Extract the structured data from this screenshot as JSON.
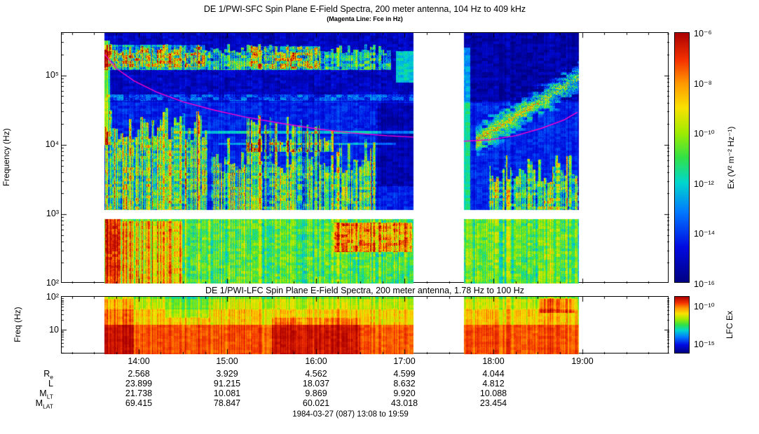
{
  "chart_data": [
    {
      "type": "heatmap",
      "title": "DE 1/PWI-SFC  Spin Plane E-Field Spectra, 200 meter antenna, 104 Hz to 409 kHz",
      "subtitle": "(Magenta Line: Fce in Hz)",
      "ylabel": "Frequency (Hz)",
      "y_scale": "log",
      "y_range_hz": [
        100,
        409000
      ],
      "y_tick_labels": [
        "10⁵",
        "10⁴",
        "10³",
        "10²"
      ],
      "y_tick_hz": [
        100000,
        10000,
        1000,
        100
      ],
      "x_time_range": [
        "13:08",
        "19:59"
      ],
      "x_hours_range": [
        13.1333,
        19.9833
      ],
      "x_ticks": [
        "14:00",
        "15:00",
        "16:00",
        "17:00",
        "18:00",
        "19:00"
      ],
      "x_tick_hours": [
        14,
        15,
        16,
        17,
        18,
        19
      ],
      "data_extent_hours": [
        13.617,
        18.967
      ],
      "data_gaps_hours": [
        [
          17.1,
          17.667
        ]
      ],
      "white_band_logf": [
        2.93,
        3.06
      ],
      "colorbar": {
        "label": "Ex (V² m⁻² Hz⁻¹)",
        "tick_labels": [
          "10⁻⁶",
          "10⁻⁸",
          "10⁻¹⁰",
          "10⁻¹²",
          "10⁻¹⁴",
          "10⁻¹⁶"
        ],
        "range_exponents": [
          -16,
          -6
        ]
      },
      "colormap": [
        [
          0,
          "#000082"
        ],
        [
          0.14,
          "#000ae1"
        ],
        [
          0.28,
          "#0078ff"
        ],
        [
          0.4,
          "#00d7cd"
        ],
        [
          0.5,
          "#32e146"
        ],
        [
          0.6,
          "#a0eb00"
        ],
        [
          0.7,
          "#fae100"
        ],
        [
          0.8,
          "#ff9600"
        ],
        [
          0.89,
          "#f53200"
        ],
        [
          1,
          "#aa0000"
        ]
      ],
      "fce_line": {
        "name": "Fce",
        "color": "#ff00cc",
        "segments": [
          [
            [
              13.62,
              5.3
            ],
            [
              13.75,
              5.1
            ],
            [
              13.95,
              4.92
            ],
            [
              14.2,
              4.76
            ],
            [
              14.5,
              4.62
            ],
            [
              14.85,
              4.5
            ],
            [
              15.2,
              4.4
            ],
            [
              15.6,
              4.31
            ],
            [
              16.0,
              4.23
            ],
            [
              16.4,
              4.17
            ],
            [
              16.8,
              4.13
            ],
            [
              17.1,
              4.11
            ]
          ],
          [
            [
              17.667,
              4.05
            ],
            [
              17.95,
              4.07
            ],
            [
              18.25,
              4.13
            ],
            [
              18.55,
              4.24
            ],
            [
              18.8,
              4.36
            ],
            [
              18.95,
              4.47
            ]
          ]
        ]
      },
      "regions": [
        {
          "name": "upper-background",
          "h": [
            13.0,
            19.0
          ],
          "f": [
            4.62,
            5.62
          ],
          "v": 0.09,
          "n": 0.12,
          "st": 0.05
        },
        {
          "name": "mid-background",
          "h": [
            13.0,
            19.0
          ],
          "f": [
            3.06,
            4.62
          ],
          "v": 0.17,
          "n": 0.1,
          "st": 0.06
        },
        {
          "name": "bottom-band",
          "h": [
            13.0,
            19.0
          ],
          "f": [
            2.0,
            2.93
          ],
          "v": 0.52,
          "n": 0.18,
          "st": 0.22
        },
        {
          "name": "continuum-band",
          "h": [
            13.6,
            16.85
          ],
          "f": [
            5.08,
            5.46
          ],
          "v": 0.3,
          "n": 0.3,
          "st": 0.25,
          "rag": 0.15
        },
        {
          "name": "akr-left-bright",
          "h": [
            13.6,
            14.75
          ],
          "f": [
            5.12,
            5.44
          ],
          "v": 0.22,
          "n": 0.2,
          "st": 0.2
        },
        {
          "name": "akr-mid-blob",
          "h": [
            15.25,
            16.05
          ],
          "f": [
            5.1,
            5.42
          ],
          "v": 0.2,
          "n": 0.2,
          "st": 0.15
        },
        {
          "name": "auroral-hiss-funnel",
          "h": [
            13.62,
            14.78
          ],
          "f": [
            2.95,
            4.55
          ],
          "v": 0.34,
          "n": 0.28,
          "st": 0.45,
          "rag": 0.5
        },
        {
          "name": "hiss-mid-mass",
          "h": [
            14.82,
            16.68
          ],
          "f": [
            3.06,
            4.12
          ],
          "v": 0.3,
          "n": 0.28,
          "st": 0.45,
          "rag": 0.55
        },
        {
          "name": "hiss-spikes",
          "h": [
            15.2,
            16.2
          ],
          "f": [
            3.9,
            4.45
          ],
          "v": 0.26,
          "n": 0.2,
          "st": 0.6,
          "rag": 0.5
        },
        {
          "name": "quiet-1700",
          "h": [
            16.7,
            17.1
          ],
          "f": [
            3.4,
            4.6
          ],
          "v": -0.1
        },
        {
          "name": "right-lower-green",
          "h": [
            17.95,
            18.97
          ],
          "f": [
            2.95,
            3.85
          ],
          "v": 0.28,
          "n": 0.28,
          "st": 0.4,
          "rag": 0.4
        },
        {
          "name": "bottom-orange-blob",
          "h": [
            16.2,
            17.08
          ],
          "f": [
            2.45,
            2.88
          ],
          "v": 0.28,
          "n": 0.12,
          "st": 0.1
        },
        {
          "name": "left-red-burst",
          "h": [
            13.62,
            13.8
          ],
          "f": [
            2.0,
            2.93
          ],
          "v": 0.4
        },
        {
          "name": "bottom-left-hot",
          "h": [
            13.8,
            14.5
          ],
          "f": [
            2.0,
            2.9
          ],
          "v": 0.18,
          "st": 0.2
        },
        {
          "name": "start-streak",
          "h": [
            13.617,
            13.68
          ],
          "f": [
            4.0,
            5.5
          ],
          "v": 0.4,
          "st": 0.2
        },
        {
          "name": "gap-edge-right",
          "h": [
            17.667,
            17.74
          ],
          "f": [
            3.0,
            5.4
          ],
          "v": 0.26
        },
        {
          "name": "gap-edge-left-top",
          "h": [
            16.9,
            17.1
          ],
          "f": [
            4.9,
            5.35
          ],
          "v": 0.3
        },
        {
          "name": "interference-line-1",
          "h": [
            14.4,
            17.1
          ],
          "f": [
            4.16,
            4.2
          ],
          "v": 0.22
        },
        {
          "name": "interference-line-2",
          "h": [
            14.9,
            16.9
          ],
          "f": [
            4.0,
            4.03
          ],
          "v": 0.16
        },
        {
          "name": "band-edge-stripe",
          "h": [
            13.62,
            17.1
          ],
          "f": [
            4.63,
            4.72
          ],
          "v": 0.12,
          "n": 0.15
        },
        {
          "name": "right-upper-quiet",
          "h": [
            17.667,
            18.97
          ],
          "f": [
            4.6,
            5.62
          ],
          "v": -0.04
        },
        {
          "name": "chorus-rising-band",
          "h": [
            17.8,
            18.97
          ],
          "fline": [
            4.05,
            4.98
          ],
          "w": 0.22,
          "v": 0.5
        }
      ]
    },
    {
      "type": "heatmap",
      "title": "DE 1/PWI-LFC  Spin Plane E-Field Spectra, 200 meter antenna, 1.78 Hz to 100 Hz",
      "ylabel": "Freq (Hz)",
      "y_scale": "log",
      "y_range_hz": [
        1.78,
        100
      ],
      "y_tick_labels": [
        "10²",
        "10"
      ],
      "y_tick_hz": [
        100,
        10
      ],
      "x_hours_range": [
        13.1333,
        19.9833
      ],
      "data_extent_hours": [
        13.617,
        18.967
      ],
      "data_gaps_hours": [
        [
          17.1,
          17.667
        ]
      ],
      "colorbar": {
        "label": "LFC Ex",
        "tick_labels": [
          "10⁻¹⁰",
          "10⁻¹⁵"
        ]
      },
      "colormap": [
        [
          0,
          "#000082"
        ],
        [
          0.14,
          "#000ae1"
        ],
        [
          0.28,
          "#0078ff"
        ],
        [
          0.4,
          "#00d7cd"
        ],
        [
          0.5,
          "#32e146"
        ],
        [
          0.6,
          "#a0eb00"
        ],
        [
          0.7,
          "#fae100"
        ],
        [
          0.8,
          "#ff9600"
        ],
        [
          0.89,
          "#f53200"
        ],
        [
          1,
          "#aa0000"
        ]
      ],
      "regions": [
        {
          "name": "base-red",
          "h": [
            13.0,
            19.0
          ],
          "f": [
            0.25,
            1.15
          ],
          "v": 0.86,
          "n": 0.06,
          "st": 0.1
        },
        {
          "name": "mid-orange",
          "h": [
            13.0,
            19.0
          ],
          "f": [
            1.15,
            1.62
          ],
          "v": 0.72,
          "n": 0.08,
          "st": 0.18
        },
        {
          "name": "top-yellow",
          "h": [
            13.0,
            19.0
          ],
          "f": [
            1.62,
            2.0
          ],
          "v": 0.64,
          "n": 0.08,
          "st": 0.18
        },
        {
          "name": "top-green-edge",
          "h": [
            13.0,
            19.0
          ],
          "f": [
            1.93,
            2.0
          ],
          "v": -0.1
        },
        {
          "name": "left-intense",
          "h": [
            13.6,
            13.95
          ],
          "f": [
            0.25,
            2.0
          ],
          "v": 0.1
        },
        {
          "name": "deep-red-core",
          "h": [
            15.5,
            16.5
          ],
          "f": [
            0.25,
            1.35
          ],
          "v": 0.09
        },
        {
          "name": "dark-orange-blob",
          "h": [
            18.52,
            18.92
          ],
          "f": [
            1.5,
            1.95
          ],
          "v": 0.16
        },
        {
          "name": "green-notch",
          "h": [
            14.3,
            14.8
          ],
          "f": [
            1.35,
            2.0
          ],
          "v": -0.1
        }
      ]
    }
  ],
  "ephemeris": {
    "rows": [
      {
        "label_main": "R",
        "label_sub": "e",
        "values": [
          "2.568",
          "3.929",
          "4.562",
          "4.599",
          "4.044"
        ]
      },
      {
        "label_main": "L",
        "label_sub": "",
        "values": [
          "23.899",
          "91.215",
          "18.037",
          "8.632",
          "4.812"
        ]
      },
      {
        "label_main": "M",
        "label_sub": "LT",
        "values": [
          "21.738",
          "10.081",
          "9.869",
          "9.920",
          "10.088"
        ]
      },
      {
        "label_main": "M",
        "label_sub": "LAT",
        "values": [
          "69.415",
          "78.847",
          "60.021",
          "43.018",
          "23.454"
        ]
      }
    ]
  },
  "footer": "1984-03-27 (087) 13:08 to 19:59"
}
